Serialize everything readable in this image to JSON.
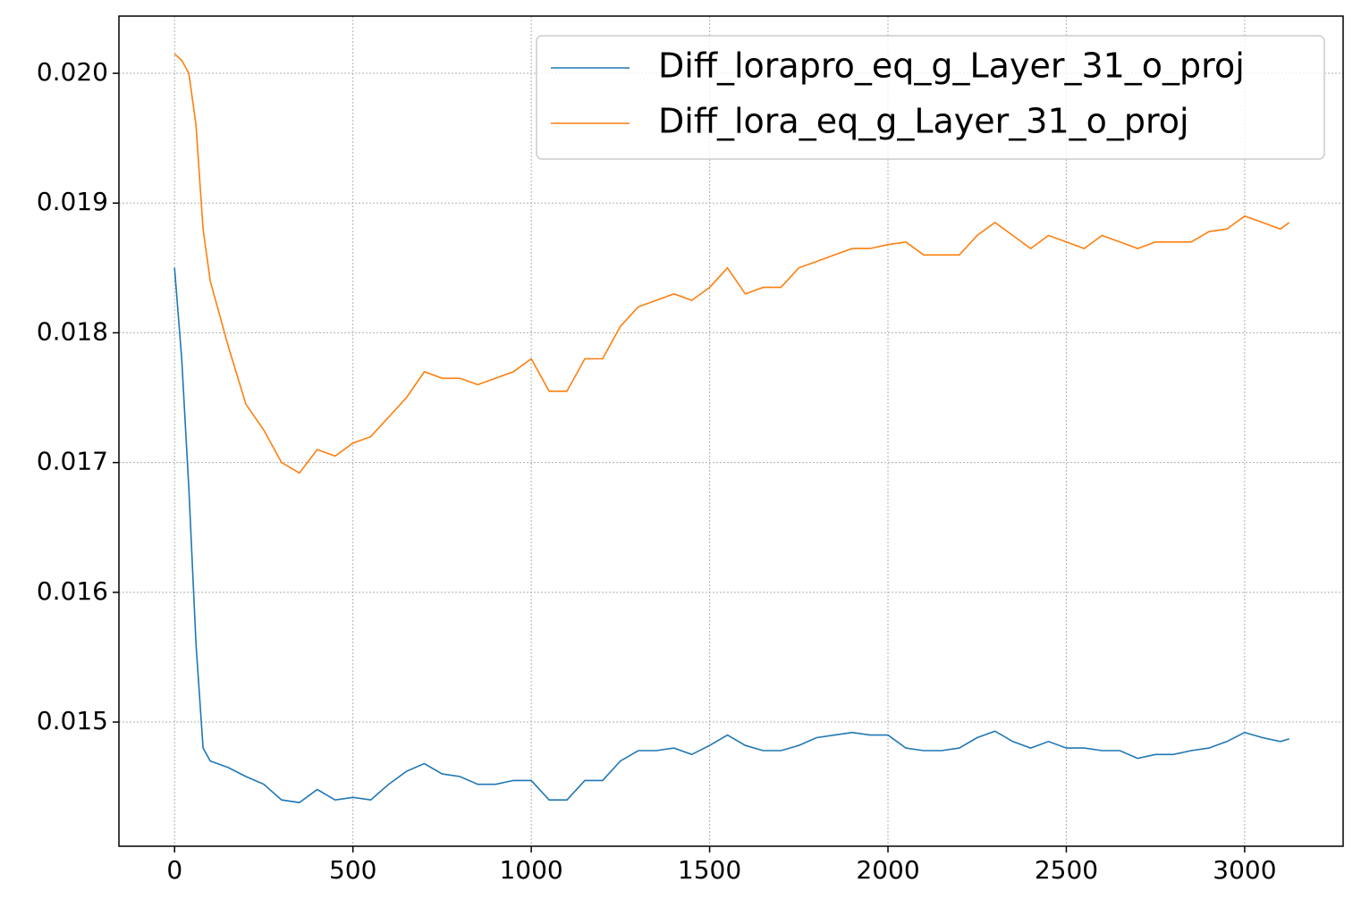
{
  "chart_data": {
    "type": "line",
    "x": [
      0,
      20,
      40,
      60,
      80,
      100,
      150,
      200,
      250,
      300,
      350,
      400,
      450,
      500,
      550,
      600,
      650,
      700,
      750,
      800,
      850,
      900,
      950,
      1000,
      1050,
      1100,
      1150,
      1200,
      1250,
      1300,
      1350,
      1400,
      1450,
      1500,
      1550,
      1600,
      1650,
      1700,
      1750,
      1800,
      1850,
      1900,
      1950,
      2000,
      2050,
      2100,
      2150,
      2200,
      2250,
      2300,
      2350,
      2400,
      2450,
      2500,
      2550,
      2600,
      2650,
      2700,
      2750,
      2800,
      2850,
      2900,
      2950,
      3000,
      3050,
      3100,
      3125
    ],
    "series": [
      {
        "name": "Diff_lorapro_eq_g_Layer_31_o_proj",
        "color": "#1f77b4",
        "values": [
          0.0185,
          0.0178,
          0.0168,
          0.0156,
          0.0148,
          0.0147,
          0.01465,
          0.01458,
          0.01452,
          0.0144,
          0.01438,
          0.01448,
          0.0144,
          0.01442,
          0.0144,
          0.01452,
          0.01462,
          0.01468,
          0.0146,
          0.01458,
          0.01452,
          0.01452,
          0.01455,
          0.01455,
          0.0144,
          0.0144,
          0.01455,
          0.01455,
          0.0147,
          0.01478,
          0.01478,
          0.0148,
          0.01475,
          0.01482,
          0.0149,
          0.01482,
          0.01478,
          0.01478,
          0.01482,
          0.01488,
          0.0149,
          0.01492,
          0.0149,
          0.0149,
          0.0148,
          0.01478,
          0.01478,
          0.0148,
          0.01488,
          0.01493,
          0.01485,
          0.0148,
          0.01485,
          0.0148,
          0.0148,
          0.01478,
          0.01478,
          0.01472,
          0.01475,
          0.01475,
          0.01478,
          0.0148,
          0.01485,
          0.01492,
          0.01488,
          0.01485,
          0.01487
        ]
      },
      {
        "name": "Diff_lora_eq_g_Layer_31_o_proj",
        "color": "#ff7f0e",
        "values": [
          0.02015,
          0.0201,
          0.02,
          0.0196,
          0.0188,
          0.0184,
          0.0179,
          0.01745,
          0.01725,
          0.017,
          0.01692,
          0.0171,
          0.01705,
          0.01715,
          0.0172,
          0.01735,
          0.0175,
          0.0177,
          0.01765,
          0.01765,
          0.0176,
          0.01765,
          0.0177,
          0.0178,
          0.01755,
          0.01755,
          0.0178,
          0.0178,
          0.01805,
          0.0182,
          0.01825,
          0.0183,
          0.01825,
          0.01835,
          0.0185,
          0.0183,
          0.01835,
          0.01835,
          0.0185,
          0.01855,
          0.0186,
          0.01865,
          0.01865,
          0.01868,
          0.0187,
          0.0186,
          0.0186,
          0.0186,
          0.01875,
          0.01885,
          0.01875,
          0.01865,
          0.01875,
          0.0187,
          0.01865,
          0.01875,
          0.0187,
          0.01865,
          0.0187,
          0.0187,
          0.0187,
          0.01878,
          0.0188,
          0.0189,
          0.01885,
          0.0188,
          0.01885
        ]
      }
    ],
    "xlim": [
      -156,
      3276
    ],
    "xticks": [
      0,
      500,
      1000,
      1500,
      2000,
      2500,
      3000
    ],
    "ylim": [
      0.014043,
      0.020441
    ],
    "yticks": [
      0.015,
      0.016,
      0.017,
      0.018,
      0.019,
      {
        "value": 0.02,
        "label": "0.020"
      }
    ],
    "grid": true,
    "legend": "upper right"
  }
}
